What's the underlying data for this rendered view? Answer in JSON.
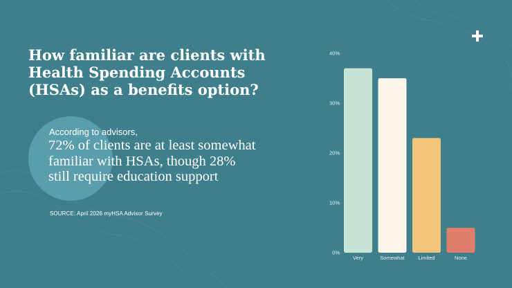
{
  "slide": {
    "title": "How familiar are clients with Health Spending Accounts (HSAs) as a benefits option?",
    "lead": "According to advisors,",
    "highlight": "72% of clients are at least somewhat familiar with HSAs, though 28% still require education support",
    "source": "SOURCE: April 2026 myHSA Advisor Survey",
    "logo_icon": "plus-icon"
  },
  "colors": {
    "background": "#3f7f8c",
    "circle": "#5fa3b1",
    "very": "#c6e3d3",
    "somewhat": "#fdf5ea",
    "limited": "#f1c57b",
    "none": "#e07f69"
  },
  "chart_data": {
    "type": "bar",
    "categories": [
      "Very",
      "Somewhat",
      "Limited",
      "None"
    ],
    "values": [
      37,
      35,
      23,
      5
    ],
    "ylim": [
      0,
      40
    ],
    "yticks": [
      "0%",
      "10%",
      "20%",
      "30%",
      "40%"
    ],
    "grid": false,
    "legend": "none",
    "xlabel": "",
    "ylabel": ""
  }
}
